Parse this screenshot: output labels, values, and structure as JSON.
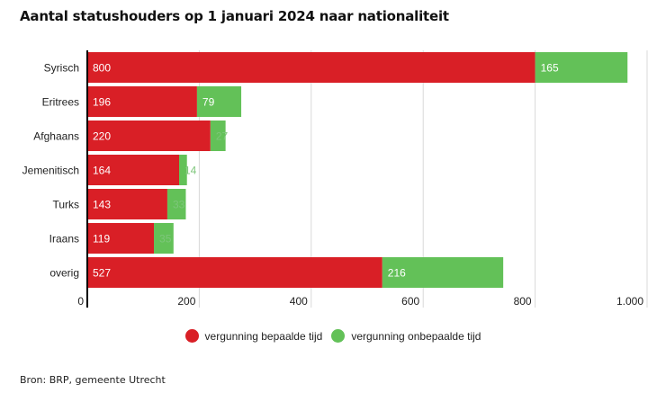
{
  "title": "Aantal statushouders op 1 januari 2024 naar nationaliteit",
  "source": "Bron: BRP, gemeente Utrecht",
  "colors": {
    "bepaald": "#d91f26",
    "onbepaald": "#63c158",
    "grid": "#d9d9d9",
    "axis": "#000000"
  },
  "legend": [
    {
      "label": "vergunning bepaalde tijd",
      "color": "#d91f26"
    },
    {
      "label": "vergunning onbepaalde tijd",
      "color": "#63c158"
    }
  ],
  "chart_data": {
    "type": "bar",
    "orientation": "horizontal",
    "stacked": true,
    "title": "Aantal statushouders op 1 januari 2024 naar nationaliteit",
    "categories": [
      "Syrisch",
      "Eritrees",
      "Afghaans",
      "Jemenitisch",
      "Turks",
      "Iraans",
      "overig"
    ],
    "series": [
      {
        "name": "vergunning bepaalde tijd",
        "values": [
          800,
          196,
          220,
          164,
          143,
          119,
          527
        ]
      },
      {
        "name": "vergunning onbepaalde tijd",
        "values": [
          165,
          79,
          27,
          14,
          33,
          35,
          216
        ]
      }
    ],
    "xlim": [
      0,
      1000
    ],
    "xticks": [
      0,
      200,
      400,
      600,
      800,
      1000
    ],
    "xtick_labels": [
      "0",
      "200",
      "400",
      "600",
      "800",
      "1.000"
    ],
    "grid": true,
    "legend_position": "bottom"
  }
}
